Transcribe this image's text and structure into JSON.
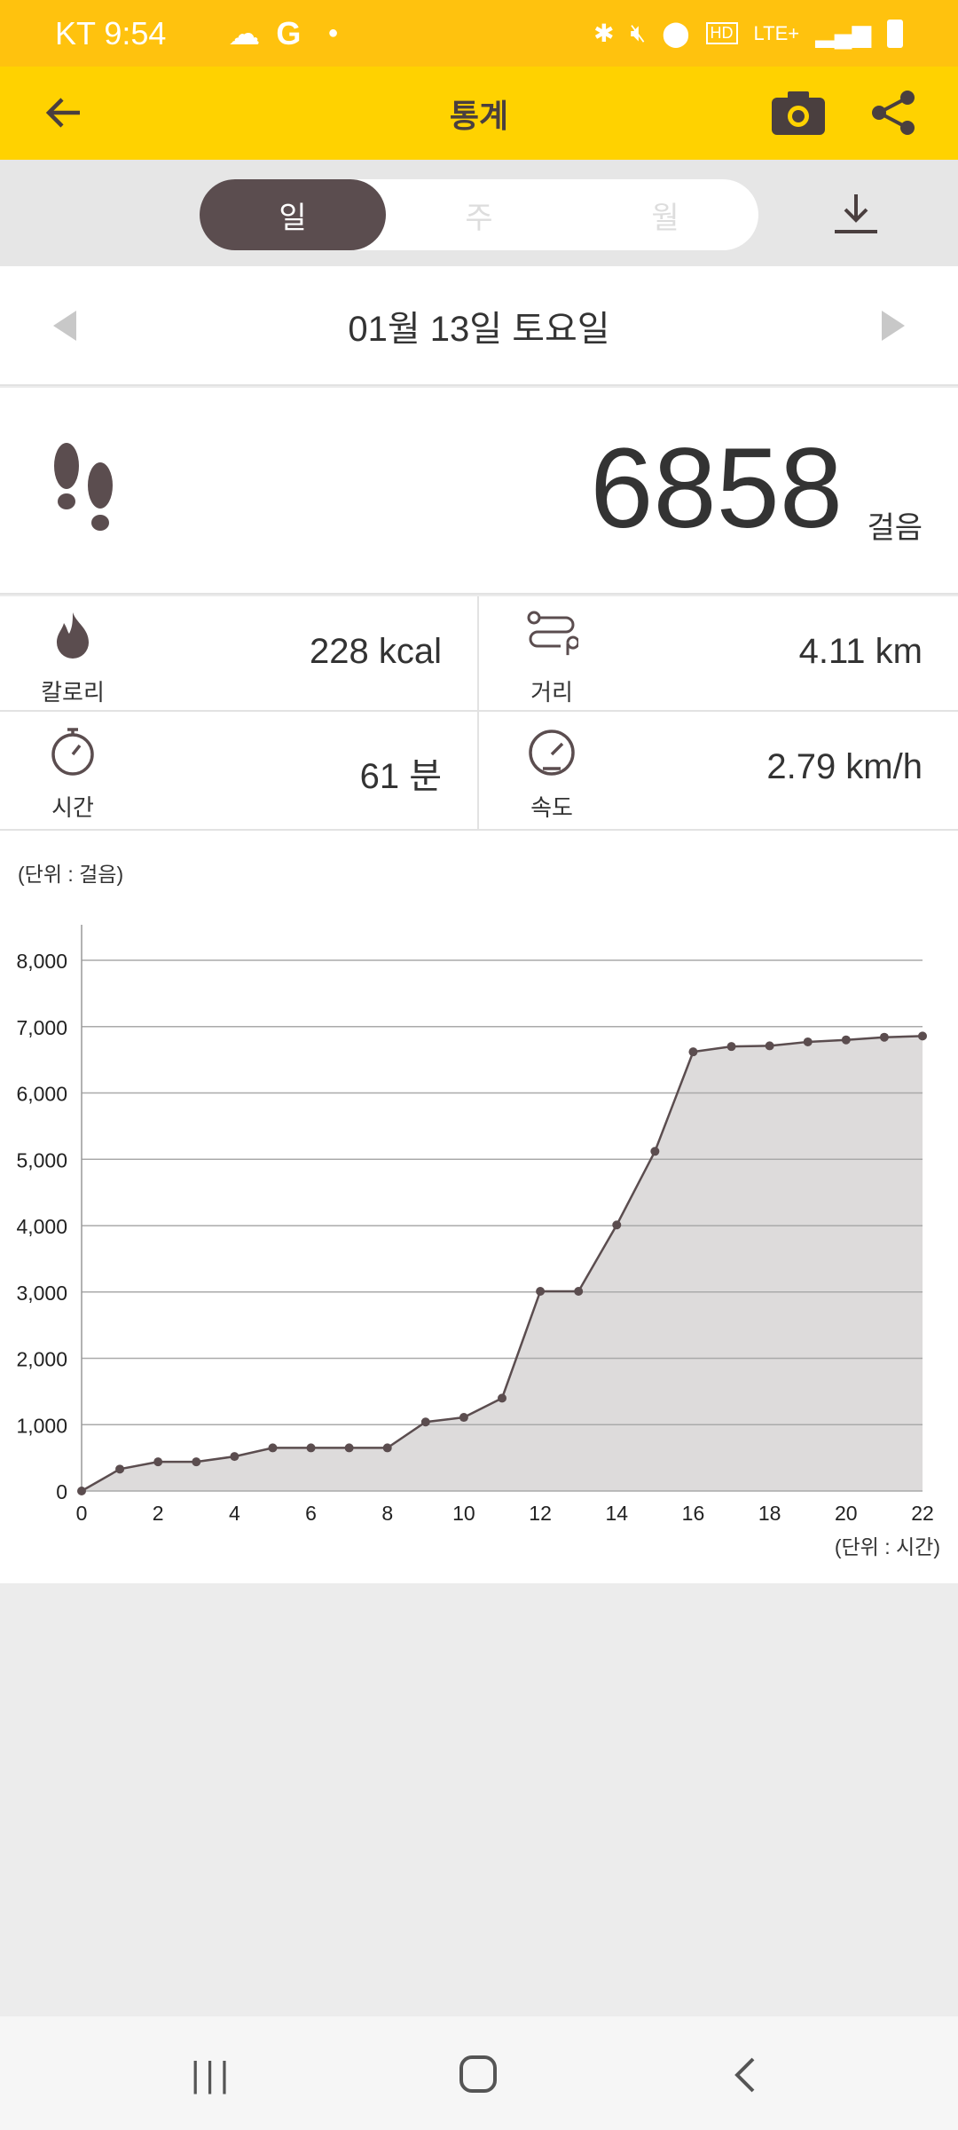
{
  "status_bar": {
    "carrier_time": "KT 9:54",
    "icons": [
      "leaf-icon",
      "cloud-icon",
      "google-icon",
      "dot-icon",
      "battery-saver-icon",
      "bluetooth-icon",
      "mute-icon",
      "location-icon",
      "hd-icon",
      "lte-icon",
      "signal-icon",
      "battery-icon"
    ],
    "g": "G",
    "hd": "HD",
    "lte": "LTE+"
  },
  "header": {
    "title": "통계",
    "back": "back-arrow-icon",
    "camera": "camera-icon",
    "share": "share-icon"
  },
  "tabs": [
    {
      "label": "일",
      "active": true
    },
    {
      "label": "주",
      "active": false
    },
    {
      "label": "월",
      "active": false
    }
  ],
  "date": {
    "label": "01월 13일 토요일"
  },
  "steps": {
    "value": "6858",
    "unit": "걸음"
  },
  "stats": [
    {
      "label": "칼로리",
      "value": "228 kcal",
      "icon": "flame-icon"
    },
    {
      "label": "거리",
      "value": "4.11 km",
      "icon": "route-icon"
    },
    {
      "label": "시간",
      "value": "61 분",
      "icon": "stopwatch-icon"
    },
    {
      "label": "속도",
      "value": "2.79 km/h",
      "icon": "speedometer-icon"
    }
  ],
  "colors": {
    "accent": "#FFD200",
    "status": "#FFC20E",
    "dark": "#5b4d4f",
    "fill": "#dddbdb"
  },
  "chart_data": {
    "type": "area",
    "ylabel": "(단위 : 걸음)",
    "xlabel": "(단위 : 시간)",
    "ylim": [
      0,
      8000
    ],
    "xlim": [
      0,
      22
    ],
    "yticks": [
      "0",
      "1,000",
      "2,000",
      "3,000",
      "4,000",
      "5,000",
      "6,000",
      "7,000",
      "8,000"
    ],
    "xticks": [
      "0",
      "2",
      "4",
      "6",
      "8",
      "10",
      "12",
      "14",
      "16",
      "18",
      "20",
      "22"
    ],
    "grid": true,
    "x": [
      0,
      1,
      2,
      3,
      4,
      5,
      6,
      7,
      8,
      9,
      10,
      11,
      12,
      13,
      14,
      15,
      16,
      17,
      18,
      19,
      20,
      21,
      22
    ],
    "values": [
      0,
      330,
      440,
      440,
      520,
      650,
      650,
      650,
      650,
      1040,
      1110,
      1400,
      3010,
      3010,
      4010,
      5120,
      6620,
      6700,
      6710,
      6770,
      6800,
      6840,
      6858
    ]
  }
}
